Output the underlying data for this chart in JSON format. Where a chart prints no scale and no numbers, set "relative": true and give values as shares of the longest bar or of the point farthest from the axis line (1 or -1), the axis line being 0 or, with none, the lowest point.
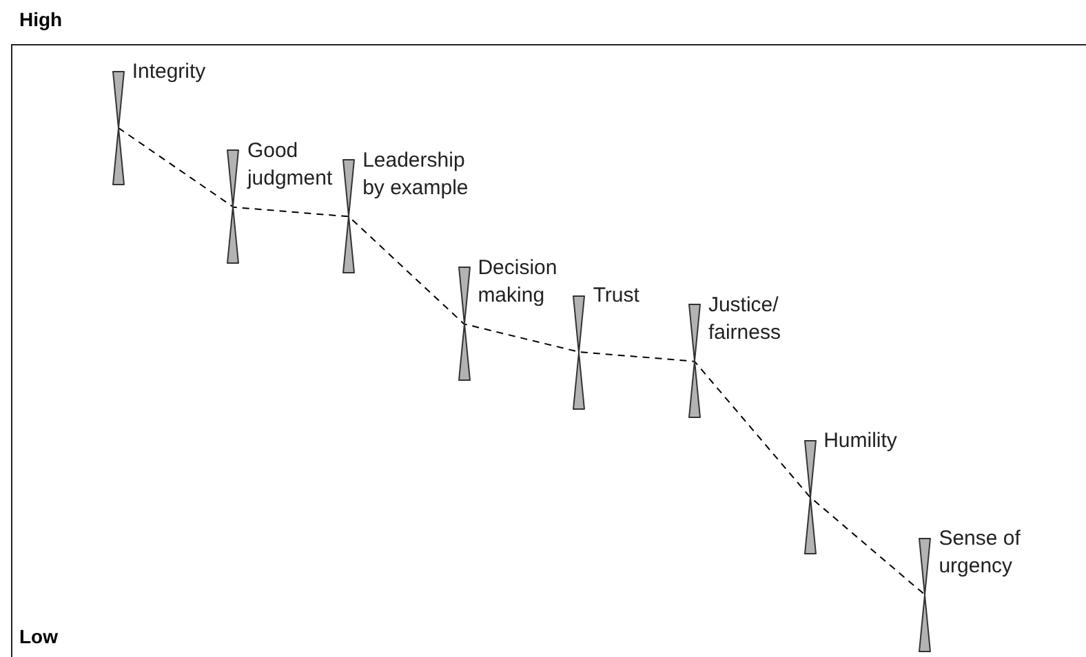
{
  "chart_data": {
    "type": "line",
    "relative": true,
    "categories": [
      null,
      null,
      null,
      null,
      null,
      null,
      null,
      null
    ],
    "series": [
      {
        "color": "#000000",
        "values": [
          1,
          0.83,
          0.81,
          0.58,
          0.52,
          0.5,
          0.21,
          0
        ]
      }
    ],
    "annotations": [
      "High",
      "Integrity",
      "Good judgment",
      "Leadership by example",
      "Decision making",
      "Trust",
      "Justice/fairness",
      "Humility",
      "Sense of urgency",
      "Low"
    ],
    "marker": "none",
    "line_style": "dashed",
    "legend": false
  }
}
